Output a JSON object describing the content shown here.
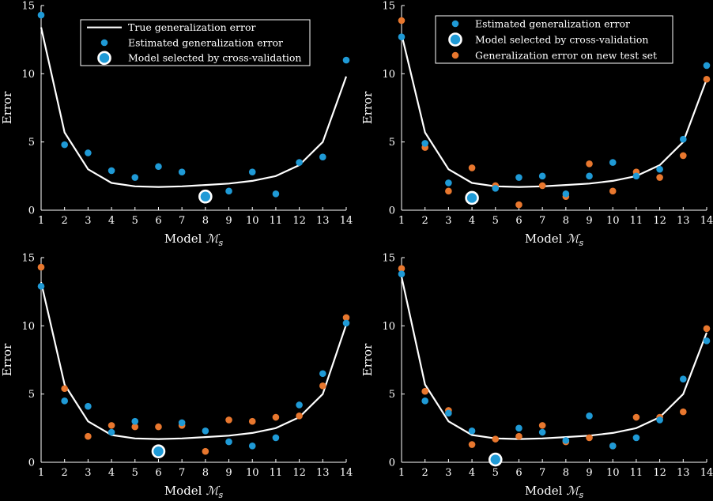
{
  "colors": {
    "background": "#000000",
    "true_curve": "#ffffff",
    "estimated": "#1f9ad6",
    "test_set": "#e8772e",
    "selected_outline": "#ffffff"
  },
  "chart_data": [
    {
      "type": "scatter",
      "panel": "top-left",
      "xlabel": "Model",
      "xlabel_math": "ℳ",
      "xlabel_sub": "s",
      "ylabel": "Error",
      "xlim": [
        1,
        14
      ],
      "ylim": [
        0,
        15
      ],
      "x_ticks": [
        "1",
        "2",
        "3",
        "4",
        "5",
        "6",
        "7",
        "8",
        "9",
        "10",
        "11",
        "12",
        "13",
        "14"
      ],
      "y_ticks": [
        "0",
        "5",
        "10",
        "15"
      ],
      "legend_position": "top-center",
      "legend": [
        {
          "kind": "line",
          "label": "True generalization error"
        },
        {
          "kind": "estimated",
          "label": "Estimated generalization error"
        },
        {
          "kind": "selected",
          "label": "Model selected by cross-validation"
        }
      ],
      "x": [
        1,
        2,
        3,
        4,
        5,
        6,
        7,
        8,
        9,
        10,
        11,
        12,
        13,
        14
      ],
      "true_error": [
        13.4,
        5.7,
        3.0,
        2.0,
        1.75,
        1.7,
        1.75,
        1.85,
        1.95,
        2.15,
        2.5,
        3.3,
        5.0,
        9.8
      ],
      "estimated": [
        14.3,
        4.8,
        4.2,
        2.9,
        2.4,
        3.2,
        2.8,
        1.0,
        1.4,
        2.8,
        1.2,
        3.5,
        3.9,
        11.0
      ],
      "test_error": [],
      "selected_model": 8
    },
    {
      "type": "scatter",
      "panel": "top-right",
      "xlabel": "Model",
      "xlabel_math": "ℳ",
      "xlabel_sub": "s",
      "ylabel": "Error",
      "xlim": [
        1,
        14
      ],
      "ylim": [
        0,
        15
      ],
      "x_ticks": [
        "1",
        "2",
        "3",
        "4",
        "5",
        "6",
        "7",
        "8",
        "9",
        "10",
        "11",
        "12",
        "13",
        "14"
      ],
      "y_ticks": [
        "0",
        "5",
        "10",
        "15"
      ],
      "legend_position": "top-right",
      "legend": [
        {
          "kind": "estimated",
          "label": "Estimated generalization error"
        },
        {
          "kind": "selected",
          "label": "Model selected by cross-validation"
        },
        {
          "kind": "test",
          "label": "Generalization error on new test set"
        }
      ],
      "x": [
        1,
        2,
        3,
        4,
        5,
        6,
        7,
        8,
        9,
        10,
        11,
        12,
        13,
        14
      ],
      "true_error": [
        12.9,
        5.7,
        3.0,
        2.0,
        1.75,
        1.7,
        1.75,
        1.85,
        1.95,
        2.15,
        2.5,
        3.3,
        5.0,
        9.6
      ],
      "estimated": [
        12.7,
        4.9,
        2.0,
        0.9,
        1.6,
        2.4,
        2.5,
        1.2,
        2.5,
        3.5,
        2.5,
        3.0,
        5.2,
        10.6
      ],
      "test_error": [
        13.9,
        4.6,
        1.4,
        3.1,
        1.8,
        0.4,
        1.8,
        1.0,
        3.4,
        1.4,
        2.8,
        2.4,
        4.0,
        9.6
      ],
      "selected_model": 4
    },
    {
      "type": "scatter",
      "panel": "bottom-left",
      "xlabel": "Model",
      "xlabel_math": "ℳ",
      "xlabel_sub": "s",
      "ylabel": "Error",
      "xlim": [
        1,
        14
      ],
      "ylim": [
        0,
        15
      ],
      "x_ticks": [
        "1",
        "2",
        "3",
        "4",
        "5",
        "6",
        "7",
        "8",
        "9",
        "10",
        "11",
        "12",
        "13",
        "14"
      ],
      "y_ticks": [
        "0",
        "5",
        "10",
        "15"
      ],
      "legend_position": "none",
      "legend": [],
      "x": [
        1,
        2,
        3,
        4,
        5,
        6,
        7,
        8,
        9,
        10,
        11,
        12,
        13,
        14
      ],
      "true_error": [
        13.2,
        5.7,
        3.0,
        2.0,
        1.75,
        1.7,
        1.75,
        1.85,
        1.95,
        2.15,
        2.5,
        3.3,
        5.0,
        10.1
      ],
      "estimated": [
        12.9,
        4.5,
        4.1,
        2.2,
        3.0,
        0.8,
        2.9,
        2.3,
        1.5,
        1.2,
        1.8,
        4.2,
        6.5,
        10.2
      ],
      "test_error": [
        14.3,
        5.4,
        1.9,
        2.7,
        2.6,
        2.6,
        2.7,
        0.8,
        3.1,
        3.0,
        3.3,
        3.4,
        5.6,
        10.6
      ],
      "selected_model": 6
    },
    {
      "type": "scatter",
      "panel": "bottom-right",
      "xlabel": "Model",
      "xlabel_math": "ℳ",
      "xlabel_sub": "s",
      "ylabel": "Error",
      "xlim": [
        1,
        14
      ],
      "ylim": [
        0,
        15
      ],
      "x_ticks": [
        "1",
        "2",
        "3",
        "4",
        "5",
        "6",
        "7",
        "8",
        "9",
        "10",
        "11",
        "12",
        "13",
        "14"
      ],
      "y_ticks": [
        "0",
        "5",
        "10",
        "15"
      ],
      "legend_position": "none",
      "legend": [],
      "x": [
        1,
        2,
        3,
        4,
        5,
        6,
        7,
        8,
        9,
        10,
        11,
        12,
        13,
        14
      ],
      "true_error": [
        13.6,
        5.7,
        3.0,
        2.0,
        1.75,
        1.7,
        1.75,
        1.85,
        1.95,
        2.15,
        2.5,
        3.3,
        5.0,
        9.5
      ],
      "estimated": [
        13.8,
        4.5,
        3.6,
        2.3,
        0.2,
        2.5,
        2.2,
        1.6,
        3.4,
        1.2,
        1.8,
        3.1,
        6.1,
        8.9
      ],
      "test_error": [
        14.2,
        5.2,
        3.8,
        1.3,
        1.7,
        1.9,
        2.7,
        1.5,
        1.8,
        1.2,
        3.3,
        3.3,
        3.7,
        9.8
      ],
      "selected_model": 5
    }
  ]
}
